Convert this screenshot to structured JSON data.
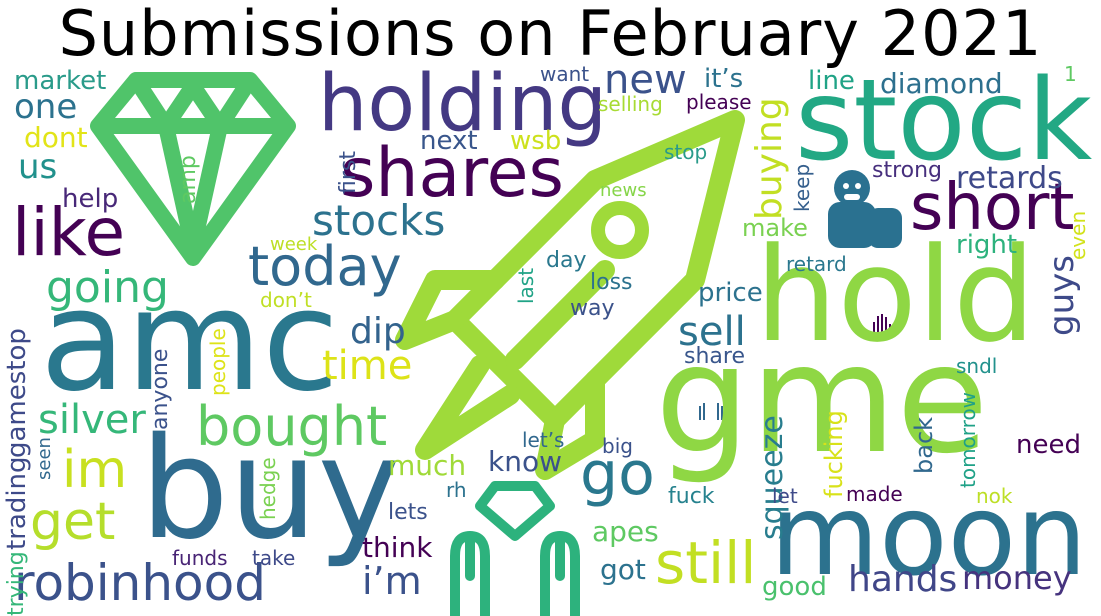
{
  "title": "Submissions on February 2021",
  "icons": [
    "diamond-icon",
    "rocket-icon",
    "gorilla-icon",
    "raised-hands-icon",
    "raised-hand-icon",
    "small-hands-icon"
  ],
  "words": [
    {
      "text": "gme",
      "color": "#8fd744"
    },
    {
      "text": "amc",
      "color": "#2a788e"
    },
    {
      "text": "buy",
      "color": "#2f6b8e"
    },
    {
      "text": "hold",
      "color": "#8fd744"
    },
    {
      "text": "stock",
      "color": "#22a884"
    },
    {
      "text": "moon",
      "color": "#2c728e"
    },
    {
      "text": "holding",
      "color": "#443983"
    },
    {
      "text": "shares",
      "color": "#440154"
    },
    {
      "text": "short",
      "color": "#440154"
    },
    {
      "text": "like",
      "color": "#440154"
    },
    {
      "text": "today",
      "color": "#31688e"
    },
    {
      "text": "robinhood",
      "color": "#3b528b"
    },
    {
      "text": "bought",
      "color": "#5ec962"
    },
    {
      "text": "still",
      "color": "#c2df23"
    },
    {
      "text": "go",
      "color": "#2a788e"
    },
    {
      "text": "get",
      "color": "#b5de2b"
    },
    {
      "text": "im",
      "color": "#c8e020"
    },
    {
      "text": "going",
      "color": "#35b779"
    },
    {
      "text": "stocks",
      "color": "#2c728e"
    },
    {
      "text": "new",
      "color": "#3b528b"
    },
    {
      "text": "sell",
      "color": "#2c728e"
    },
    {
      "text": "time",
      "color": "#dde318"
    },
    {
      "text": "dip",
      "color": "#33638d"
    },
    {
      "text": "silver",
      "color": "#35b779"
    },
    {
      "text": "buying",
      "color": "#c2df23"
    },
    {
      "text": "squeeze",
      "color": "#287d8e"
    },
    {
      "text": "hands",
      "color": "#404688"
    },
    {
      "text": "money",
      "color": "#46337e"
    },
    {
      "text": "guys",
      "color": "#3e4a89"
    },
    {
      "text": "i’m",
      "color": "#3b528b"
    },
    {
      "text": "retards",
      "color": "#3e4989"
    },
    {
      "text": "diamond",
      "color": "#2d708e"
    },
    {
      "text": "one",
      "color": "#2c728e"
    },
    {
      "text": "us",
      "color": "#21918c"
    },
    {
      "text": "market",
      "color": "#2a9b8a"
    },
    {
      "text": "dont",
      "color": "#e2e418"
    },
    {
      "text": "next",
      "color": "#39568c"
    },
    {
      "text": "wsb",
      "color": "#cde11d"
    },
    {
      "text": "it’s",
      "color": "#2c728e"
    },
    {
      "text": "line",
      "color": "#20a386"
    },
    {
      "text": "want",
      "color": "#3b528b"
    },
    {
      "text": "selling",
      "color": "#a8db34"
    },
    {
      "text": "please",
      "color": "#440154"
    },
    {
      "text": "1",
      "color": "#5ec962"
    },
    {
      "text": "help",
      "color": "#482878"
    },
    {
      "text": "amp",
      "color": "#5ec962"
    },
    {
      "text": "first",
      "color": "#3b528b"
    },
    {
      "text": "stop",
      "color": "#2a9b8a"
    },
    {
      "text": "news",
      "color": "#86d549"
    },
    {
      "text": "keep",
      "color": "#355f8d"
    },
    {
      "text": "strong",
      "color": "#472f7d"
    },
    {
      "text": "make",
      "color": "#7ad151"
    },
    {
      "text": "right",
      "color": "#2db27d"
    },
    {
      "text": "even",
      "color": "#d2e21b"
    },
    {
      "text": "week",
      "color": "#bddf26"
    },
    {
      "text": "don’t",
      "color": "#c0df25"
    },
    {
      "text": "gamestop",
      "color": "#3e4a89"
    },
    {
      "text": "trading",
      "color": "#3e4a89"
    },
    {
      "text": "trying",
      "color": "#35b779"
    },
    {
      "text": "day",
      "color": "#2a788e"
    },
    {
      "text": "last",
      "color": "#20a386"
    },
    {
      "text": "loss",
      "color": "#2c728e"
    },
    {
      "text": "way",
      "color": "#3b528b"
    },
    {
      "text": "retard",
      "color": "#2a788e"
    },
    {
      "text": "price",
      "color": "#2c728e"
    },
    {
      "text": "people",
      "color": "#dde318"
    },
    {
      "text": "anyone",
      "color": "#3b528b"
    },
    {
      "text": "share",
      "color": "#39568c"
    },
    {
      "text": "sndl",
      "color": "#21918c"
    },
    {
      "text": "seen",
      "color": "#31688e"
    },
    {
      "text": "hedge",
      "color": "#7ad151"
    },
    {
      "text": "much",
      "color": "#a0da39"
    },
    {
      "text": "know",
      "color": "#3b528b"
    },
    {
      "text": "let’s",
      "color": "#31688e"
    },
    {
      "text": "big",
      "color": "#3b528b"
    },
    {
      "text": "rh",
      "color": "#2c728e"
    },
    {
      "text": "lets",
      "color": "#3b528b"
    },
    {
      "text": "fuck",
      "color": "#26828e"
    },
    {
      "text": "fucking",
      "color": "#d8e219"
    },
    {
      "text": "back",
      "color": "#31688e"
    },
    {
      "text": "tomorrow",
      "color": "#1fa187"
    },
    {
      "text": "need",
      "color": "#440154"
    },
    {
      "text": "let",
      "color": "#3e4a89"
    },
    {
      "text": "made",
      "color": "#440154"
    },
    {
      "text": "nok",
      "color": "#bddf26"
    },
    {
      "text": "think",
      "color": "#440154"
    },
    {
      "text": "apes",
      "color": "#5ec962"
    },
    {
      "text": "got",
      "color": "#2c728e"
    },
    {
      "text": "good",
      "color": "#4ac16d"
    },
    {
      "text": "funds",
      "color": "#482475"
    },
    {
      "text": "take",
      "color": "#3e4a89"
    }
  ]
}
